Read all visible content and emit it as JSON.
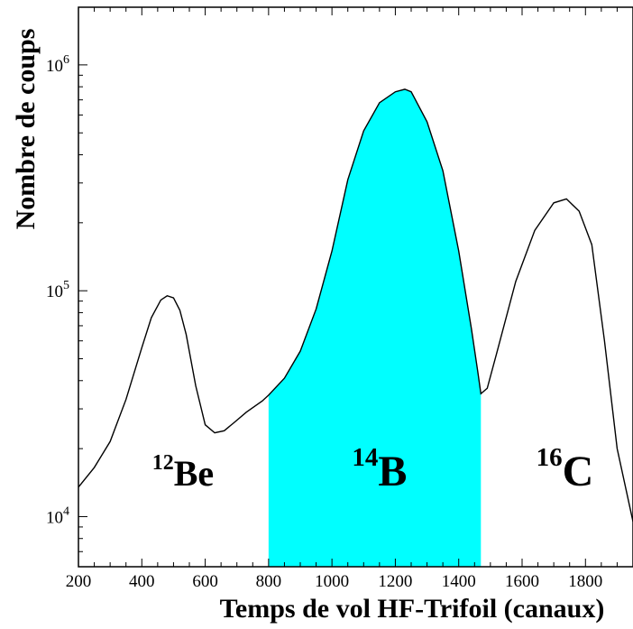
{
  "chart_data": {
    "type": "area",
    "xlabel": "Temps de vol HF-Trifoil (canaux)",
    "ylabel": "Nombre de coups",
    "xlim": [
      200,
      1950
    ],
    "ylim": [
      6000,
      1800000
    ],
    "yscale": "log",
    "grid": false,
    "x_ticks": [
      200,
      400,
      600,
      800,
      1000,
      1200,
      1400,
      1600,
      1800
    ],
    "y_ticks": [
      {
        "value": 10000,
        "base": "10",
        "exp": "4"
      },
      {
        "value": 100000,
        "base": "10",
        "exp": "5"
      },
      {
        "value": 1000000,
        "base": "10",
        "exp": "6"
      }
    ],
    "highlight": {
      "x_range": [
        800,
        1470
      ],
      "color": "#00ffff"
    },
    "series": [
      {
        "x": [
          200,
          250,
          300,
          350,
          400,
          430,
          460,
          480,
          500,
          520,
          540,
          570,
          600,
          630,
          660,
          690,
          730,
          780,
          800,
          850,
          900,
          950,
          1000,
          1050,
          1100,
          1150,
          1200,
          1230,
          1250,
          1300,
          1350,
          1400,
          1440,
          1460,
          1470,
          1490,
          1520,
          1580,
          1640,
          1700,
          1740,
          1780,
          1820,
          1860,
          1900,
          1950
        ],
        "y": [
          13500,
          16500,
          21500,
          33000,
          56000,
          76000,
          91000,
          95000,
          93000,
          82000,
          64000,
          38000,
          25500,
          23500,
          24000,
          26000,
          29000,
          32500,
          34500,
          41000,
          54000,
          83000,
          150000,
          310000,
          510000,
          680000,
          760000,
          780000,
          760000,
          560000,
          340000,
          150000,
          68000,
          44000,
          35000,
          37000,
          53000,
          110000,
          185000,
          245000,
          255000,
          225000,
          160000,
          60000,
          20000,
          9500
        ]
      }
    ],
    "annotations": [
      {
        "id": "be12",
        "mass": "12",
        "element": "Be",
        "x": 530
      },
      {
        "id": "b14",
        "mass": "14",
        "element": "B",
        "x": 1150
      },
      {
        "id": "c16",
        "mass": "16",
        "element": "C",
        "x": 1735
      }
    ]
  }
}
